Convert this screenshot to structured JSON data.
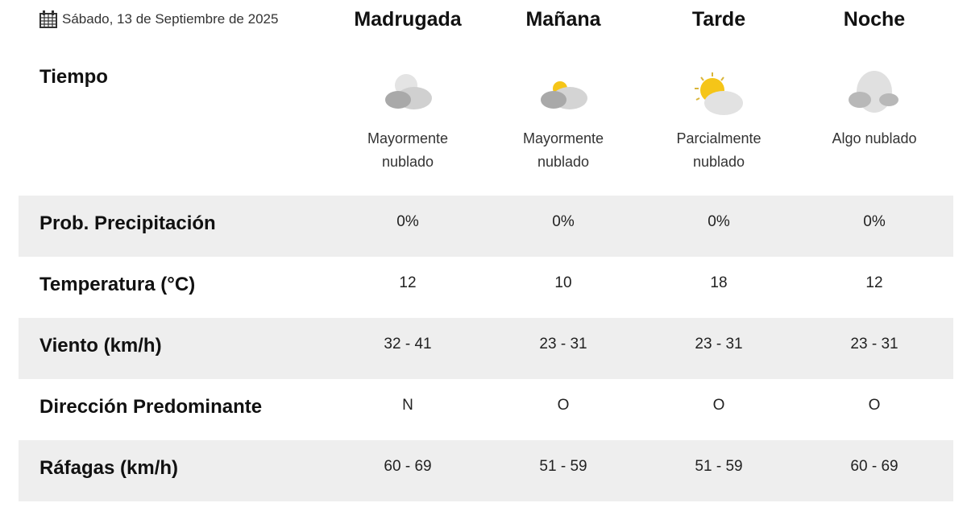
{
  "date": {
    "icon": "calendar-icon",
    "label": "Sábado, 13 de Septiembre de 2025"
  },
  "periods": [
    {
      "name": "Madrugada",
      "icon": "mostly-cloudy-night-icon",
      "desc1": "Mayormente",
      "desc2": "nublado"
    },
    {
      "name": "Mañana",
      "icon": "mostly-cloudy-day-icon",
      "desc1": "Mayormente",
      "desc2": "nublado"
    },
    {
      "name": "Tarde",
      "icon": "partly-cloudy-day-icon",
      "desc1": "Parcialmente",
      "desc2": "nublado"
    },
    {
      "name": "Noche",
      "icon": "somewhat-cloudy-night-icon",
      "desc1": "Algo nublado",
      "desc2": ""
    }
  ],
  "weather_label": "Tiempo",
  "rows": [
    {
      "label": "Prob. Precipitación",
      "values": [
        "0%",
        "0%",
        "0%",
        "0%"
      ]
    },
    {
      "label": "Temperatura (°C)",
      "values": [
        "12",
        "10",
        "18",
        "12"
      ]
    },
    {
      "label": "Viento (km/h)",
      "values": [
        "32 - 41",
        "23 - 31",
        "23 - 31",
        "23 - 31"
      ]
    },
    {
      "label": "Dirección Predominante",
      "values": [
        "N",
        "O",
        "O",
        "O"
      ]
    },
    {
      "label": "Ráfagas (km/h)",
      "values": [
        "60 - 69",
        "51 - 59",
        "51 - 59",
        "60 - 69"
      ]
    }
  ],
  "colors": {
    "band": "#eeeeee",
    "sun": "#f5c518",
    "cloud_dark": "#a9a9a9",
    "cloud_light": "#d4d4d4"
  }
}
